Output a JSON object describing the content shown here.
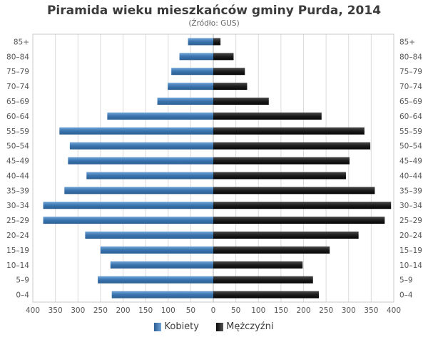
{
  "chart_data": {
    "type": "bar",
    "orientation": "horizontal-pyramid",
    "title": "Piramida wieku mieszkańców gminy Purda, 2014",
    "subtitle": "(Źródło: GUS)",
    "categories": [
      "85+",
      "80–84",
      "75–79",
      "70–74",
      "65–69",
      "60–64",
      "55–59",
      "50–54",
      "45–49",
      "40–44",
      "35–39",
      "30–34",
      "25–29",
      "20–24",
      "15–19",
      "10–14",
      "5–9",
      "0–4"
    ],
    "series": [
      {
        "name": "Kobiety",
        "side": "left",
        "color": "#3a74ae",
        "values": [
          56,
          75,
          93,
          101,
          124,
          235,
          341,
          318,
          322,
          281,
          330,
          377,
          377,
          284,
          250,
          228,
          256,
          225
        ]
      },
      {
        "name": "Mężczyźni",
        "side": "right",
        "color": "#1c1c1c",
        "values": [
          16,
          45,
          70,
          75,
          123,
          240,
          335,
          348,
          302,
          294,
          358,
          394,
          380,
          322,
          258,
          198,
          221,
          234
        ]
      }
    ],
    "xlim": [
      -400,
      400
    ],
    "x_ticks": [
      {
        "value": -400,
        "label": "400"
      },
      {
        "value": -350,
        "label": "350"
      },
      {
        "value": -300,
        "label": "300"
      },
      {
        "value": -250,
        "label": "250"
      },
      {
        "value": -200,
        "label": "200"
      },
      {
        "value": -150,
        "label": "150"
      },
      {
        "value": -100,
        "label": "100"
      },
      {
        "value": -50,
        "label": "50"
      },
      {
        "value": 0,
        "label": "0"
      },
      {
        "value": 50,
        "label": "50"
      },
      {
        "value": 100,
        "label": "100"
      },
      {
        "value": 150,
        "label": "150"
      },
      {
        "value": 200,
        "label": "200"
      },
      {
        "value": 250,
        "label": "250"
      },
      {
        "value": 300,
        "label": "300"
      },
      {
        "value": 350,
        "label": "350"
      },
      {
        "value": 400,
        "label": "400"
      }
    ],
    "grid": true,
    "legend_position": "bottom-center"
  }
}
